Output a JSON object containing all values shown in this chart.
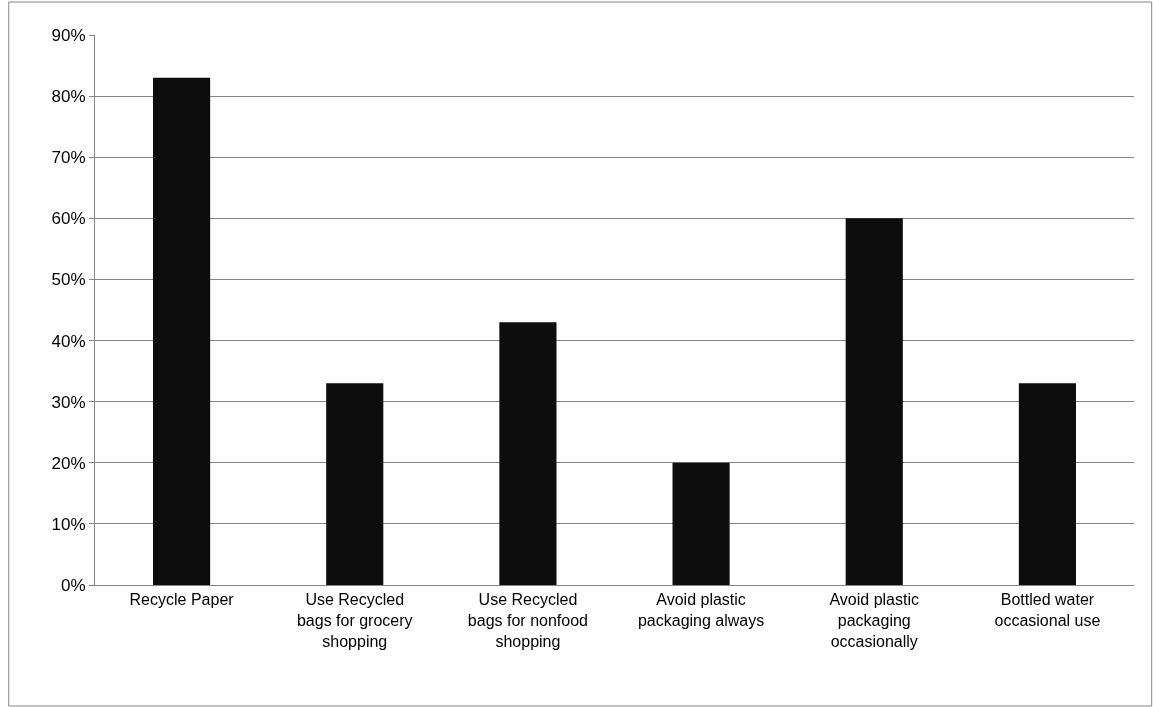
{
  "chart_data": {
    "type": "bar",
    "categories": [
      "Recycle Paper",
      "Use Recycled bags for grocery shopping",
      "Use Recycled bags for nonfood shopping",
      "Avoid plastic packaging always",
      "Avoid plastic packaging occasionally",
      "Bottled water occasional use"
    ],
    "values": [
      83,
      33,
      43,
      20,
      60,
      33
    ],
    "color": "#0d0d0d",
    "ylim": [
      0,
      90
    ],
    "yticks": [
      {
        "value": 0,
        "label": "0%"
      },
      {
        "value": 10,
        "label": "10%"
      },
      {
        "value": 20,
        "label": "20%"
      },
      {
        "value": 30,
        "label": "30%"
      },
      {
        "value": 40,
        "label": "40%"
      },
      {
        "value": 50,
        "label": "50%"
      },
      {
        "value": 60,
        "label": "60%"
      },
      {
        "value": 70,
        "label": "70%"
      },
      {
        "value": 80,
        "label": "80%"
      },
      {
        "value": 90,
        "label": "90%"
      }
    ],
    "grid": "y"
  }
}
